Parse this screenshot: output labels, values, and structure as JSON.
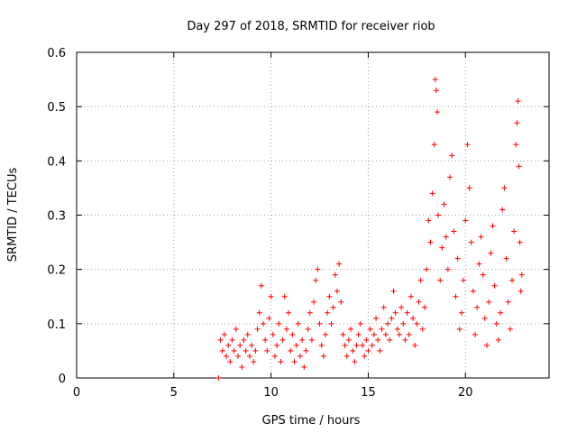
{
  "chart_data": {
    "type": "scatter",
    "title": "Day 297 of 2018, SRMTID for receiver riob",
    "xlabel": "GPS time / hours",
    "ylabel": "SRMTID / TECUs",
    "xlim": [
      0,
      24.3
    ],
    "ylim": [
      0,
      0.6
    ],
    "xticks": [
      0,
      5,
      10,
      15,
      20
    ],
    "xtick_labels": [
      "0",
      "5",
      "10",
      "15",
      "20"
    ],
    "yticks": [
      0,
      0.1,
      0.2,
      0.3,
      0.4,
      0.5,
      0.6
    ],
    "ytick_labels": [
      "0",
      "0.1",
      "0.2",
      "0.3",
      "0.4",
      "0.5",
      "0.6"
    ],
    "grid": true,
    "legend": "none",
    "marker": "+",
    "color": "#ff0000",
    "series": [
      {
        "name": "SRMTID",
        "points": [
          [
            7.3,
            0.0
          ],
          [
            7.4,
            0.07
          ],
          [
            7.5,
            0.05
          ],
          [
            7.6,
            0.08
          ],
          [
            7.7,
            0.04
          ],
          [
            7.8,
            0.06
          ],
          [
            7.9,
            0.03
          ],
          [
            8.0,
            0.07
          ],
          [
            8.1,
            0.05
          ],
          [
            8.2,
            0.09
          ],
          [
            8.3,
            0.04
          ],
          [
            8.4,
            0.06
          ],
          [
            8.5,
            0.02
          ],
          [
            8.6,
            0.07
          ],
          [
            8.7,
            0.05
          ],
          [
            8.8,
            0.08
          ],
          [
            8.9,
            0.04
          ],
          [
            9.0,
            0.06
          ],
          [
            9.1,
            0.03
          ],
          [
            9.2,
            0.05
          ],
          [
            9.3,
            0.09
          ],
          [
            9.4,
            0.12
          ],
          [
            9.5,
            0.17
          ],
          [
            9.6,
            0.1
          ],
          [
            9.7,
            0.07
          ],
          [
            9.8,
            0.05
          ],
          [
            9.9,
            0.11
          ],
          [
            10.0,
            0.15
          ],
          [
            10.1,
            0.08
          ],
          [
            10.2,
            0.04
          ],
          [
            10.3,
            0.06
          ],
          [
            10.4,
            0.1
          ],
          [
            10.5,
            0.03
          ],
          [
            10.6,
            0.07
          ],
          [
            10.7,
            0.15
          ],
          [
            10.8,
            0.09
          ],
          [
            10.9,
            0.12
          ],
          [
            11.0,
            0.05
          ],
          [
            11.1,
            0.08
          ],
          [
            11.2,
            0.03
          ],
          [
            11.3,
            0.06
          ],
          [
            11.4,
            0.1
          ],
          [
            11.5,
            0.04
          ],
          [
            11.6,
            0.07
          ],
          [
            11.7,
            0.02
          ],
          [
            11.8,
            0.05
          ],
          [
            11.9,
            0.09
          ],
          [
            12.0,
            0.12
          ],
          [
            12.1,
            0.07
          ],
          [
            12.2,
            0.14
          ],
          [
            12.3,
            0.18
          ],
          [
            12.4,
            0.2
          ],
          [
            12.5,
            0.1
          ],
          [
            12.6,
            0.06
          ],
          [
            12.7,
            0.04
          ],
          [
            12.8,
            0.08
          ],
          [
            12.9,
            0.12
          ],
          [
            13.0,
            0.15
          ],
          [
            13.1,
            0.1
          ],
          [
            13.2,
            0.13
          ],
          [
            13.3,
            0.19
          ],
          [
            13.4,
            0.16
          ],
          [
            13.5,
            0.21
          ],
          [
            13.6,
            0.14
          ],
          [
            13.7,
            0.08
          ],
          [
            13.8,
            0.06
          ],
          [
            13.9,
            0.04
          ],
          [
            14.0,
            0.07
          ],
          [
            14.1,
            0.09
          ],
          [
            14.2,
            0.05
          ],
          [
            14.3,
            0.03
          ],
          [
            14.4,
            0.06
          ],
          [
            14.5,
            0.08
          ],
          [
            14.6,
            0.1
          ],
          [
            14.7,
            0.06
          ],
          [
            14.8,
            0.04
          ],
          [
            14.9,
            0.07
          ],
          [
            15.0,
            0.05
          ],
          [
            15.1,
            0.09
          ],
          [
            15.2,
            0.06
          ],
          [
            15.3,
            0.08
          ],
          [
            15.4,
            0.11
          ],
          [
            15.5,
            0.07
          ],
          [
            15.6,
            0.05
          ],
          [
            15.7,
            0.09
          ],
          [
            15.8,
            0.13
          ],
          [
            15.9,
            0.08
          ],
          [
            16.0,
            0.1
          ],
          [
            16.1,
            0.07
          ],
          [
            16.2,
            0.11
          ],
          [
            16.3,
            0.16
          ],
          [
            16.4,
            0.12
          ],
          [
            16.5,
            0.09
          ],
          [
            16.6,
            0.08
          ],
          [
            16.7,
            0.13
          ],
          [
            16.8,
            0.1
          ],
          [
            16.9,
            0.07
          ],
          [
            17.0,
            0.12
          ],
          [
            17.1,
            0.08
          ],
          [
            17.2,
            0.15
          ],
          [
            17.3,
            0.11
          ],
          [
            17.4,
            0.06
          ],
          [
            17.5,
            0.1
          ],
          [
            17.6,
            0.14
          ],
          [
            17.7,
            0.18
          ],
          [
            17.8,
            0.09
          ],
          [
            17.9,
            0.13
          ],
          [
            18.0,
            0.2
          ],
          [
            18.1,
            0.29
          ],
          [
            18.2,
            0.25
          ],
          [
            18.3,
            0.34
          ],
          [
            18.4,
            0.43
          ],
          [
            18.45,
            0.55
          ],
          [
            18.5,
            0.53
          ],
          [
            18.55,
            0.49
          ],
          [
            18.6,
            0.3
          ],
          [
            18.7,
            0.18
          ],
          [
            18.8,
            0.24
          ],
          [
            18.9,
            0.32
          ],
          [
            19.0,
            0.26
          ],
          [
            19.1,
            0.2
          ],
          [
            19.2,
            0.37
          ],
          [
            19.3,
            0.41
          ],
          [
            19.4,
            0.27
          ],
          [
            19.5,
            0.15
          ],
          [
            19.6,
            0.22
          ],
          [
            19.7,
            0.09
          ],
          [
            19.8,
            0.12
          ],
          [
            19.9,
            0.18
          ],
          [
            20.0,
            0.29
          ],
          [
            20.1,
            0.43
          ],
          [
            20.2,
            0.35
          ],
          [
            20.3,
            0.25
          ],
          [
            20.4,
            0.16
          ],
          [
            20.5,
            0.08
          ],
          [
            20.6,
            0.13
          ],
          [
            20.7,
            0.21
          ],
          [
            20.8,
            0.26
          ],
          [
            20.9,
            0.19
          ],
          [
            21.0,
            0.11
          ],
          [
            21.1,
            0.06
          ],
          [
            21.2,
            0.14
          ],
          [
            21.3,
            0.23
          ],
          [
            21.4,
            0.28
          ],
          [
            21.5,
            0.17
          ],
          [
            21.6,
            0.1
          ],
          [
            21.7,
            0.07
          ],
          [
            21.8,
            0.12
          ],
          [
            21.9,
            0.31
          ],
          [
            22.0,
            0.35
          ],
          [
            22.1,
            0.22
          ],
          [
            22.2,
            0.14
          ],
          [
            22.3,
            0.09
          ],
          [
            22.4,
            0.18
          ],
          [
            22.5,
            0.27
          ],
          [
            22.6,
            0.43
          ],
          [
            22.65,
            0.47
          ],
          [
            22.7,
            0.51
          ],
          [
            22.75,
            0.39
          ],
          [
            22.8,
            0.25
          ],
          [
            22.85,
            0.16
          ],
          [
            22.9,
            0.19
          ]
        ]
      }
    ]
  }
}
